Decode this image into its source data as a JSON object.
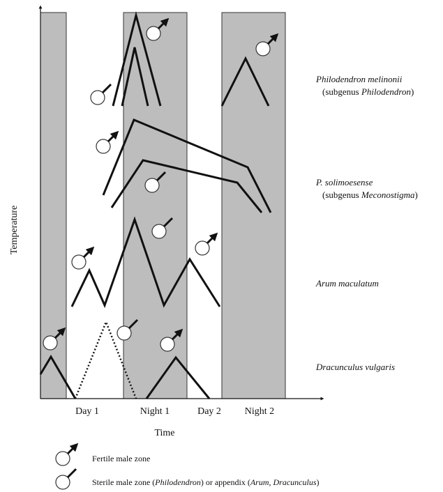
{
  "axes": {
    "y_label": "Temperature",
    "x_label": "Time",
    "periods": [
      "Day 1",
      "Night 1",
      "Day 2",
      "Night 2"
    ]
  },
  "species": [
    {
      "name": "Philodendron melinonii",
      "subgenus_prefix": "(subgenus ",
      "subgenus": "Philodendron",
      "subgenus_suffix": ")"
    },
    {
      "name": "P. solimoesense",
      "subgenus_prefix": "(subgenus ",
      "subgenus": "Meconostigma",
      "subgenus_suffix": ")"
    },
    {
      "name": "Arum maculatum"
    },
    {
      "name": "Dracunculus vulgaris"
    }
  ],
  "legend": {
    "fertile": "Fertile male zone",
    "sterile_parts": [
      "Sterile male zone (",
      "Philodendron",
      ") or appendix (",
      "Arum, Dracunculus",
      ")"
    ]
  }
}
